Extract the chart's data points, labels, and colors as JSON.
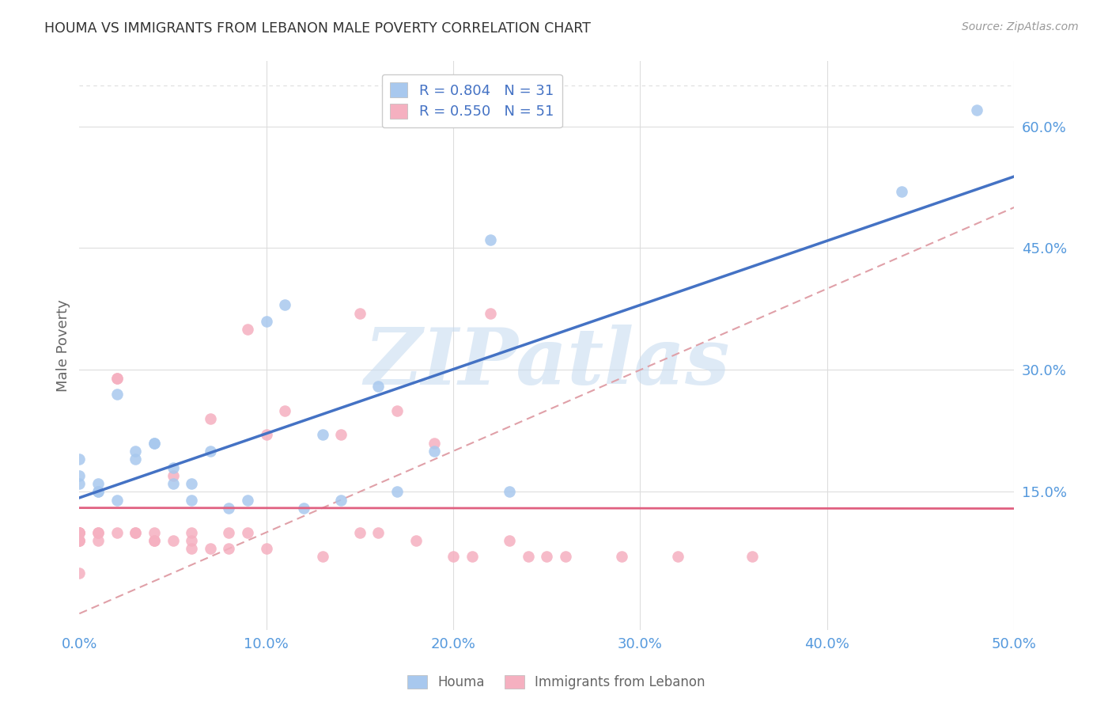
{
  "title": "HOUMA VS IMMIGRANTS FROM LEBANON MALE POVERTY CORRELATION CHART",
  "source": "Source: ZipAtlas.com",
  "ylabel": "Male Poverty",
  "xlim": [
    0.0,
    0.5
  ],
  "ylim": [
    -0.02,
    0.68
  ],
  "xtick_labels": [
    "0.0%",
    "10.0%",
    "20.0%",
    "30.0%",
    "40.0%",
    "50.0%"
  ],
  "xtick_vals": [
    0.0,
    0.1,
    0.2,
    0.3,
    0.4,
    0.5
  ],
  "ytick_labels": [
    "15.0%",
    "30.0%",
    "45.0%",
    "60.0%"
  ],
  "ytick_vals": [
    0.15,
    0.3,
    0.45,
    0.6
  ],
  "houma_color": "#A8C8EE",
  "lebanon_color": "#F5B0C0",
  "houma_line_color": "#4472C4",
  "lebanon_line_color": "#E06080",
  "diagonal_color": "#E0A0A8",
  "legend_r_houma": "R = 0.804",
  "legend_n_houma": "N = 31",
  "legend_r_lebanon": "R = 0.550",
  "legend_n_lebanon": "N = 51",
  "houma_scatter_x": [
    0.0,
    0.0,
    0.0,
    0.01,
    0.01,
    0.01,
    0.02,
    0.02,
    0.03,
    0.03,
    0.04,
    0.04,
    0.05,
    0.05,
    0.06,
    0.06,
    0.07,
    0.08,
    0.09,
    0.1,
    0.11,
    0.12,
    0.13,
    0.14,
    0.16,
    0.17,
    0.19,
    0.22,
    0.23,
    0.44,
    0.48
  ],
  "houma_scatter_y": [
    0.17,
    0.19,
    0.16,
    0.15,
    0.16,
    0.15,
    0.14,
    0.27,
    0.19,
    0.2,
    0.21,
    0.21,
    0.16,
    0.18,
    0.14,
    0.16,
    0.2,
    0.13,
    0.14,
    0.36,
    0.38,
    0.13,
    0.22,
    0.14,
    0.28,
    0.15,
    0.2,
    0.46,
    0.15,
    0.52,
    0.62
  ],
  "lebanon_scatter_x": [
    0.0,
    0.0,
    0.0,
    0.0,
    0.0,
    0.0,
    0.0,
    0.0,
    0.01,
    0.01,
    0.01,
    0.02,
    0.02,
    0.02,
    0.03,
    0.03,
    0.04,
    0.04,
    0.04,
    0.05,
    0.05,
    0.06,
    0.06,
    0.06,
    0.07,
    0.07,
    0.08,
    0.08,
    0.09,
    0.09,
    0.1,
    0.1,
    0.11,
    0.13,
    0.14,
    0.15,
    0.15,
    0.16,
    0.17,
    0.18,
    0.19,
    0.2,
    0.21,
    0.22,
    0.23,
    0.24,
    0.25,
    0.26,
    0.29,
    0.32,
    0.36
  ],
  "lebanon_scatter_y": [
    0.1,
    0.1,
    0.1,
    0.1,
    0.09,
    0.09,
    0.09,
    0.05,
    0.1,
    0.1,
    0.09,
    0.29,
    0.29,
    0.1,
    0.1,
    0.1,
    0.09,
    0.09,
    0.1,
    0.17,
    0.09,
    0.1,
    0.09,
    0.08,
    0.24,
    0.08,
    0.1,
    0.08,
    0.35,
    0.1,
    0.08,
    0.22,
    0.25,
    0.07,
    0.22,
    0.1,
    0.37,
    0.1,
    0.25,
    0.09,
    0.21,
    0.07,
    0.07,
    0.37,
    0.09,
    0.07,
    0.07,
    0.07,
    0.07,
    0.07,
    0.07
  ],
  "background_color": "#FFFFFF",
  "grid_color": "#DDDDDD",
  "title_color": "#333333",
  "axis_label_color": "#666666",
  "tick_label_color": "#5599DD",
  "watermark_color": "#C8DCF0",
  "watermark_alpha": 0.6
}
